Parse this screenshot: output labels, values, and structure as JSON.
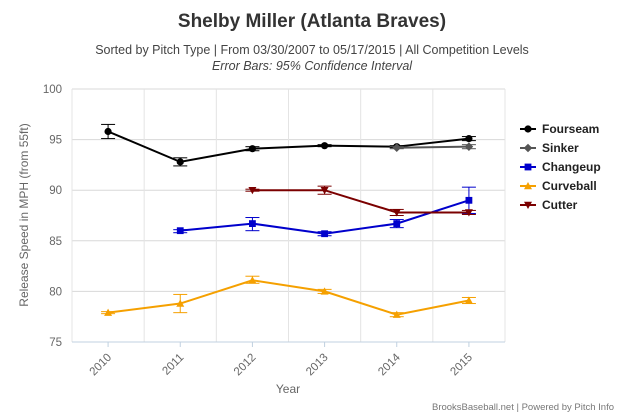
{
  "chart_data": {
    "type": "line",
    "title": "Shelby Miller (Atlanta Braves)",
    "subtitle": "Sorted by Pitch Type | From 03/30/2007 to 05/17/2015 | All Competition Levels",
    "subtitle2": "Error Bars: 95% Confidence Interval",
    "xlabel": "Year",
    "ylabel": "Release Speed in MPH (from 55ft)",
    "categories": [
      "2010",
      "2011",
      "2012",
      "2013",
      "2014",
      "2015"
    ],
    "ylim": [
      75,
      100
    ],
    "yticks": [
      75,
      80,
      85,
      90,
      95,
      100
    ],
    "grid": true,
    "legend_position": "right",
    "credit": "BrooksBaseball.net | Powered by Pitch Info",
    "series": [
      {
        "name": "Fourseam",
        "color": "#000000",
        "marker": "circle",
        "values": [
          95.8,
          92.8,
          94.1,
          94.4,
          94.3,
          95.1
        ],
        "err": [
          [
            95.1,
            96.5
          ],
          [
            92.4,
            93.2
          ],
          [
            93.9,
            94.3
          ],
          [
            94.3,
            94.5
          ],
          [
            94.2,
            94.4
          ],
          [
            94.9,
            95.3
          ]
        ]
      },
      {
        "name": "Sinker",
        "color": "#555555",
        "marker": "diamond",
        "values": [
          null,
          null,
          null,
          null,
          94.2,
          94.3
        ],
        "err": [
          null,
          null,
          null,
          null,
          [
            94.1,
            94.3
          ],
          [
            94.1,
            94.5
          ]
        ]
      },
      {
        "name": "Changeup",
        "color": "#0000cc",
        "marker": "square",
        "values": [
          null,
          86.0,
          86.7,
          85.7,
          86.7,
          89.0
        ],
        "err": [
          null,
          [
            85.8,
            86.1
          ],
          [
            86.0,
            87.3
          ],
          [
            85.5,
            85.9
          ],
          [
            86.3,
            87.1
          ],
          [
            87.7,
            90.3
          ]
        ]
      },
      {
        "name": "Curveball",
        "color": "#f5a000",
        "marker": "triangle",
        "values": [
          77.9,
          78.8,
          81.1,
          80.0,
          77.7,
          79.1
        ],
        "err": [
          [
            77.8,
            78.0
          ],
          [
            77.9,
            79.7
          ],
          [
            80.8,
            81.5
          ],
          [
            79.8,
            80.2
          ],
          [
            77.5,
            77.9
          ],
          [
            78.8,
            79.4
          ]
        ]
      },
      {
        "name": "Cutter",
        "color": "#7b0000",
        "marker": "triangle-down",
        "values": [
          null,
          null,
          90.0,
          90.0,
          87.8,
          87.8
        ],
        "err": [
          null,
          null,
          [
            89.9,
            90.1
          ],
          [
            89.6,
            90.4
          ],
          [
            87.5,
            88.1
          ],
          [
            87.6,
            88.0
          ]
        ]
      }
    ]
  }
}
